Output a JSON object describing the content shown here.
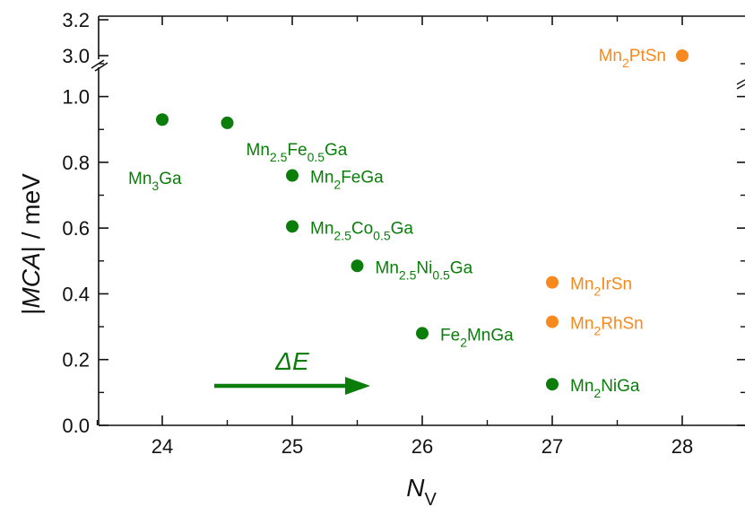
{
  "chart_data": {
    "type": "scatter",
    "title": "",
    "xlabel": {
      "main": "N",
      "sub": "V"
    },
    "ylabel": "|MCA| / meV",
    "xlim": [
      23.5,
      28.5
    ],
    "ylim_lower": [
      0.0,
      1.1
    ],
    "ylim_upper": [
      2.9,
      3.2
    ],
    "axis_break": true,
    "x_ticks": [
      "24",
      "25",
      "26",
      "27",
      "28"
    ],
    "y_ticks_lower": [
      "0.0",
      "0.2",
      "0.4",
      "0.6",
      "0.8",
      "1.0"
    ],
    "y_ticks_upper": [
      "3.0",
      "3.2"
    ],
    "grid": false,
    "colors": {
      "green": "#0a7d0a",
      "orange": "#f7891f"
    },
    "annotation": {
      "text": "ΔE",
      "arrow_from_x": 24.4,
      "arrow_to_x": 25.6,
      "arrow_y": 0.12
    },
    "points": [
      {
        "x": 24.0,
        "y": 0.93,
        "color": "green",
        "label": [
          [
            "Mn",
            ""
          ],
          [
            "3",
            "sub"
          ],
          [
            "Ga",
            ""
          ]
        ]
      },
      {
        "x": 24.5,
        "y": 0.92,
        "color": "green",
        "label": [
          [
            "Mn",
            ""
          ],
          [
            "2.5",
            "sub"
          ],
          [
            "Fe",
            ""
          ],
          [
            "0.5",
            "sub"
          ],
          [
            "Ga",
            ""
          ]
        ]
      },
      {
        "x": 25.0,
        "y": 0.76,
        "color": "green",
        "label": [
          [
            "Mn",
            ""
          ],
          [
            "2",
            "sub"
          ],
          [
            "FeGa",
            ""
          ]
        ]
      },
      {
        "x": 25.0,
        "y": 0.605,
        "color": "green",
        "label": [
          [
            "Mn",
            ""
          ],
          [
            "2.5",
            "sub"
          ],
          [
            "Co",
            ""
          ],
          [
            "0.5",
            "sub"
          ],
          [
            "Ga",
            ""
          ]
        ]
      },
      {
        "x": 25.5,
        "y": 0.485,
        "color": "green",
        "label": [
          [
            "Mn",
            ""
          ],
          [
            "2.5",
            "sub"
          ],
          [
            "Ni",
            ""
          ],
          [
            "0.5",
            "sub"
          ],
          [
            "Ga",
            ""
          ]
        ]
      },
      {
        "x": 26.0,
        "y": 0.28,
        "color": "green",
        "label": [
          [
            "Fe",
            ""
          ],
          [
            "2",
            "sub"
          ],
          [
            "MnGa",
            ""
          ]
        ]
      },
      {
        "x": 27.0,
        "y": 0.125,
        "color": "green",
        "label": [
          [
            "Mn",
            ""
          ],
          [
            "2",
            "sub"
          ],
          [
            "NiGa",
            ""
          ]
        ]
      },
      {
        "x": 27.0,
        "y": 0.435,
        "color": "orange",
        "label": [
          [
            "Mn",
            ""
          ],
          [
            "2",
            "sub"
          ],
          [
            "IrSn",
            ""
          ]
        ]
      },
      {
        "x": 27.0,
        "y": 0.315,
        "color": "orange",
        "label": [
          [
            "Mn",
            ""
          ],
          [
            "2",
            "sub"
          ],
          [
            "RhSn",
            ""
          ]
        ]
      },
      {
        "x": 28.0,
        "y": 3.0,
        "color": "orange",
        "label": [
          [
            "Mn",
            ""
          ],
          [
            "2",
            "sub"
          ],
          [
            "PtSn",
            ""
          ]
        ]
      }
    ]
  }
}
